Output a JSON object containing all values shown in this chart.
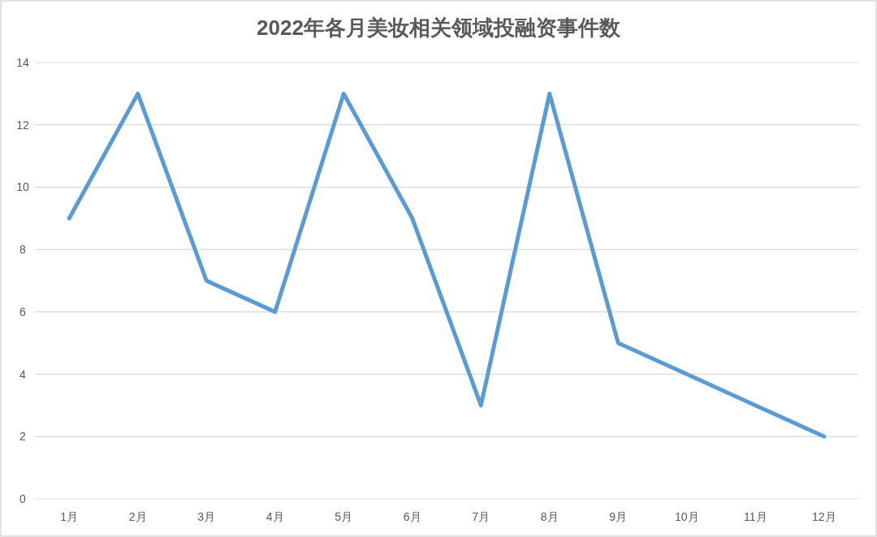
{
  "chart_data": {
    "type": "line",
    "title": "2022年各月美妆相关领域投融资事件数",
    "categories": [
      "1月",
      "2月",
      "3月",
      "4月",
      "5月",
      "6月",
      "7月",
      "8月",
      "9月",
      "10月",
      "11月",
      "12月"
    ],
    "series": [
      {
        "color": "#5b9bd5",
        "values": [
          9,
          13,
          7,
          6,
          13,
          9,
          3,
          13,
          5,
          4,
          3,
          2
        ]
      }
    ],
    "ylim": [
      0,
      14
    ],
    "yticks": [
      0,
      2,
      4,
      6,
      8,
      10,
      12,
      14
    ],
    "grid": "y",
    "line_style": "solid"
  }
}
